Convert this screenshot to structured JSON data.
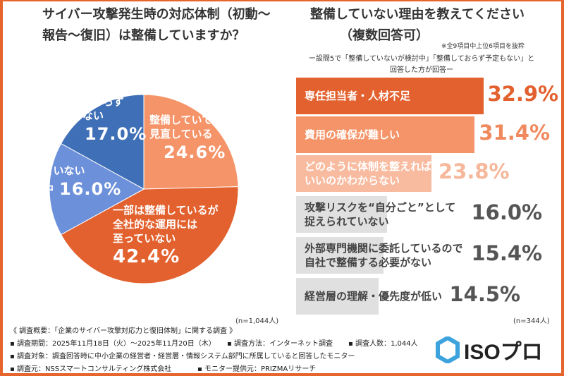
{
  "left_title_lines": [
    "サイバー攻撃発生時の対応体制（初動〜",
    "報告〜復旧）は整備していますか？"
  ],
  "right_title_lines": [
    "整備していない理由を教えてください",
    "（複数回答可）"
  ],
  "right_note": "※全9項目中上位6項目を抜粋",
  "right_sub_lines": [
    "ー設問5で「整備していないが検討中」「整備しておらず予定もない」と",
    "回答した方が回答ー"
  ],
  "colors": {
    "frame": "#e5652c",
    "dark_orange": "#e2612e",
    "salmon": "#f59469",
    "light_salmon": "#f9bba0",
    "gray_bar": "#e0e0e0",
    "blue_dark": "#3f6fb6",
    "blue_light": "#6d90da"
  },
  "chart_data": [
    {
      "type": "pie",
      "n_label": "(n=1,044人)",
      "slices": [
        {
          "label_lines": [
            "整備していて定期的に",
            "見直している"
          ],
          "value": 24.6,
          "value_label": "24.6%",
          "color": "#f59469"
        },
        {
          "label_lines": [
            "一部は整備しているが",
            "全社的な運用には",
            "至っていない"
          ],
          "value": 42.4,
          "value_label": "42.4%",
          "color": "#e2612e"
        },
        {
          "label_lines": [
            "整備していない",
            "が検討中"
          ],
          "value": 16.0,
          "value_label": "16.0%",
          "color": "#6d90da"
        },
        {
          "label_lines": [
            "整備しておらず",
            "予定もない"
          ],
          "value": 17.0,
          "value_label": "17.0%",
          "color": "#3f6fb6"
        }
      ]
    },
    {
      "type": "bar",
      "orientation": "horizontal",
      "n_label": "(n=344人)",
      "items": [
        {
          "label_lines": [
            "専任担当者・人材不足"
          ],
          "value": 32.9,
          "value_label": "32.9%",
          "color": "#e2612e",
          "text_color": "#fff",
          "value_color": "#e2612e"
        },
        {
          "label_lines": [
            "費用の確保が難しい"
          ],
          "value": 31.4,
          "value_label": "31.4%",
          "color": "#f59469",
          "text_color": "#fff",
          "value_color": "#f08a5e"
        },
        {
          "label_lines": [
            "どのように体制を整えれば",
            "いいのかわからない"
          ],
          "value": 23.8,
          "value_label": "23.8%",
          "color": "#f9bba0",
          "text_color": "#fff",
          "value_color": "#f6b79a"
        },
        {
          "label_lines": [
            "攻撃リスクを“自分ごと”として",
            "捉えられていない"
          ],
          "value": 16.0,
          "value_label": "16.0%",
          "color": "#e0e0e0",
          "text_color": "#444",
          "value_color": "#555"
        },
        {
          "label_lines": [
            "外部専門機関に委託しているので",
            "自社で整備する必要がない"
          ],
          "value": 15.4,
          "value_label": "15.4%",
          "color": "#e0e0e0",
          "text_color": "#444",
          "value_color": "#555"
        },
        {
          "label_lines": [
            "経営層の理解・優先度が低い"
          ],
          "value": 14.5,
          "value_label": "14.5%",
          "color": "#e0e0e0",
          "text_color": "#444",
          "value_color": "#555"
        }
      ]
    }
  ],
  "footer": {
    "summary": "《 調査概要：「企業のサイバー攻撃対応力と復旧体制」に関する調査 》",
    "period": "▪ 調査期間：2025年11月18日（火）〜2025年11月20日（木）",
    "method": "▪ 調査方法：インターネット調査",
    "count": "▪ 調査人数：1,044人",
    "target": "▪ 調査対象：調査回答時に中小企業の経営者・経営層・情報システム部門に所属していると回答したモニター",
    "source": "▪ 調査元：NSSスマートコンサルティング株式会社",
    "provider": "▪ モニター提供元：PRIZMAリサーチ"
  },
  "logo": {
    "text": "ISOプロ"
  }
}
